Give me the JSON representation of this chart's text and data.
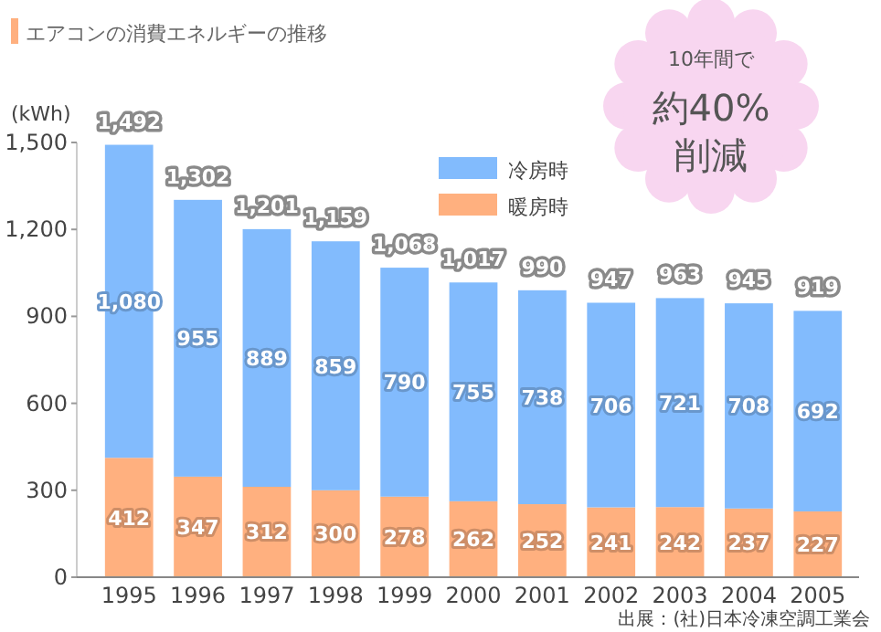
{
  "chart_data": {
    "type": "bar",
    "stacked": true,
    "title": "エアコンの消費エネルギーの推移",
    "ylabel": "(kWh)",
    "categories": [
      "1995",
      "1996",
      "1997",
      "1998",
      "1999",
      "2000",
      "2001",
      "2002",
      "2003",
      "2004",
      "2005"
    ],
    "series": [
      {
        "name": "暖房時",
        "color": "#ffb07f",
        "values": [
          412,
          347,
          312,
          300,
          278,
          262,
          252,
          241,
          242,
          237,
          227
        ],
        "value_labels": [
          "412",
          "347",
          "312",
          "300",
          "278",
          "262",
          "252",
          "241",
          "242",
          "237",
          "227"
        ]
      },
      {
        "name": "冷房時",
        "color": "#82bbfd",
        "values": [
          1080,
          955,
          889,
          859,
          790,
          755,
          738,
          706,
          721,
          708,
          692
        ],
        "value_labels": [
          "1,080",
          "955",
          "889",
          "859",
          "790",
          "755",
          "738",
          "706",
          "721",
          "708",
          "692"
        ]
      }
    ],
    "totals": [
      "1,492",
      "1,302",
      "1,201",
      "1,159",
      "1,068",
      "1,017",
      "990",
      "947",
      "963",
      "945",
      "919"
    ],
    "ylim": [
      0,
      1500
    ],
    "yticks": [
      0,
      300,
      600,
      900,
      {
        "value": 1200,
        "label": "1,200"
      },
      {
        "value": 1500,
        "label": "1,500"
      }
    ],
    "legend": "top right",
    "annotations": [
      "10年間で",
      "約40%",
      "削減",
      "出展：(社)日本冷凍空調工業会"
    ]
  }
}
